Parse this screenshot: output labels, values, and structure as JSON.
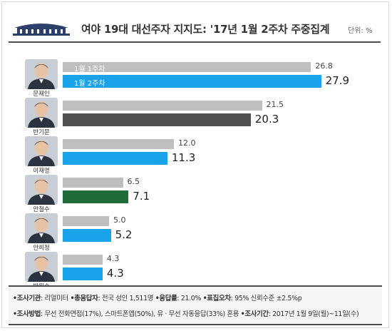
{
  "title": "여야 19대 대선주자 지지도: '17년 1월 2주차 주중집계",
  "unit": "단위: %",
  "colors": {
    "prev": "#bfbfbf",
    "current_blue": "#1aa3e8",
    "current_dark": "#505050",
    "current_green": "#1f6b3a"
  },
  "chart_data": {
    "type": "bar",
    "orientation": "horizontal",
    "categories": [
      "문재인",
      "반기문",
      "이재명",
      "안철수",
      "안희정",
      "박원순"
    ],
    "series": [
      {
        "name": "1월 1주차",
        "values": [
          26.8,
          21.5,
          12.0,
          6.5,
          5.0,
          4.3
        ]
      },
      {
        "name": "1월 2주차",
        "values": [
          27.9,
          20.3,
          11.3,
          7.1,
          5.2,
          4.3
        ]
      }
    ],
    "value_labels": [
      {
        "prev": "26.8",
        "current": "27.9"
      },
      {
        "prev": "21.5",
        "current": "20.3"
      },
      {
        "prev": "12.0",
        "current": "11.3"
      },
      {
        "prev": "6.5",
        "current": "7.1"
      },
      {
        "prev": "5.0",
        "current": "5.2"
      },
      {
        "prev": "4.3",
        "current": "4.3"
      }
    ],
    "current_colors": [
      "#1aa3e8",
      "#505050",
      "#1aa3e8",
      "#1f6b3a",
      "#1aa3e8",
      "#1aa3e8"
    ],
    "legend_placement": "inside first bars"
  },
  "footer": {
    "line1": [
      {
        "label": "•조사기관",
        "text": ": 리얼미터 "
      },
      {
        "label": "•총응답자",
        "text": ": 전국 성인 1,511명 "
      },
      {
        "label": "•응답률",
        "text": ": 21.0% "
      },
      {
        "label": "•표집오차",
        "text": ": 95% 신뢰수준 ±2.5%p"
      }
    ],
    "line2": [
      {
        "label": "•조사방법",
        "text": ": 무선 전화면접(17%), 스마트폰앱(50%), 유 · 무선 자동응답(33%) 혼용 "
      },
      {
        "label": "•조사기간",
        "text": ": 2017년 1월 9일(월)~11일(수)"
      }
    ]
  }
}
